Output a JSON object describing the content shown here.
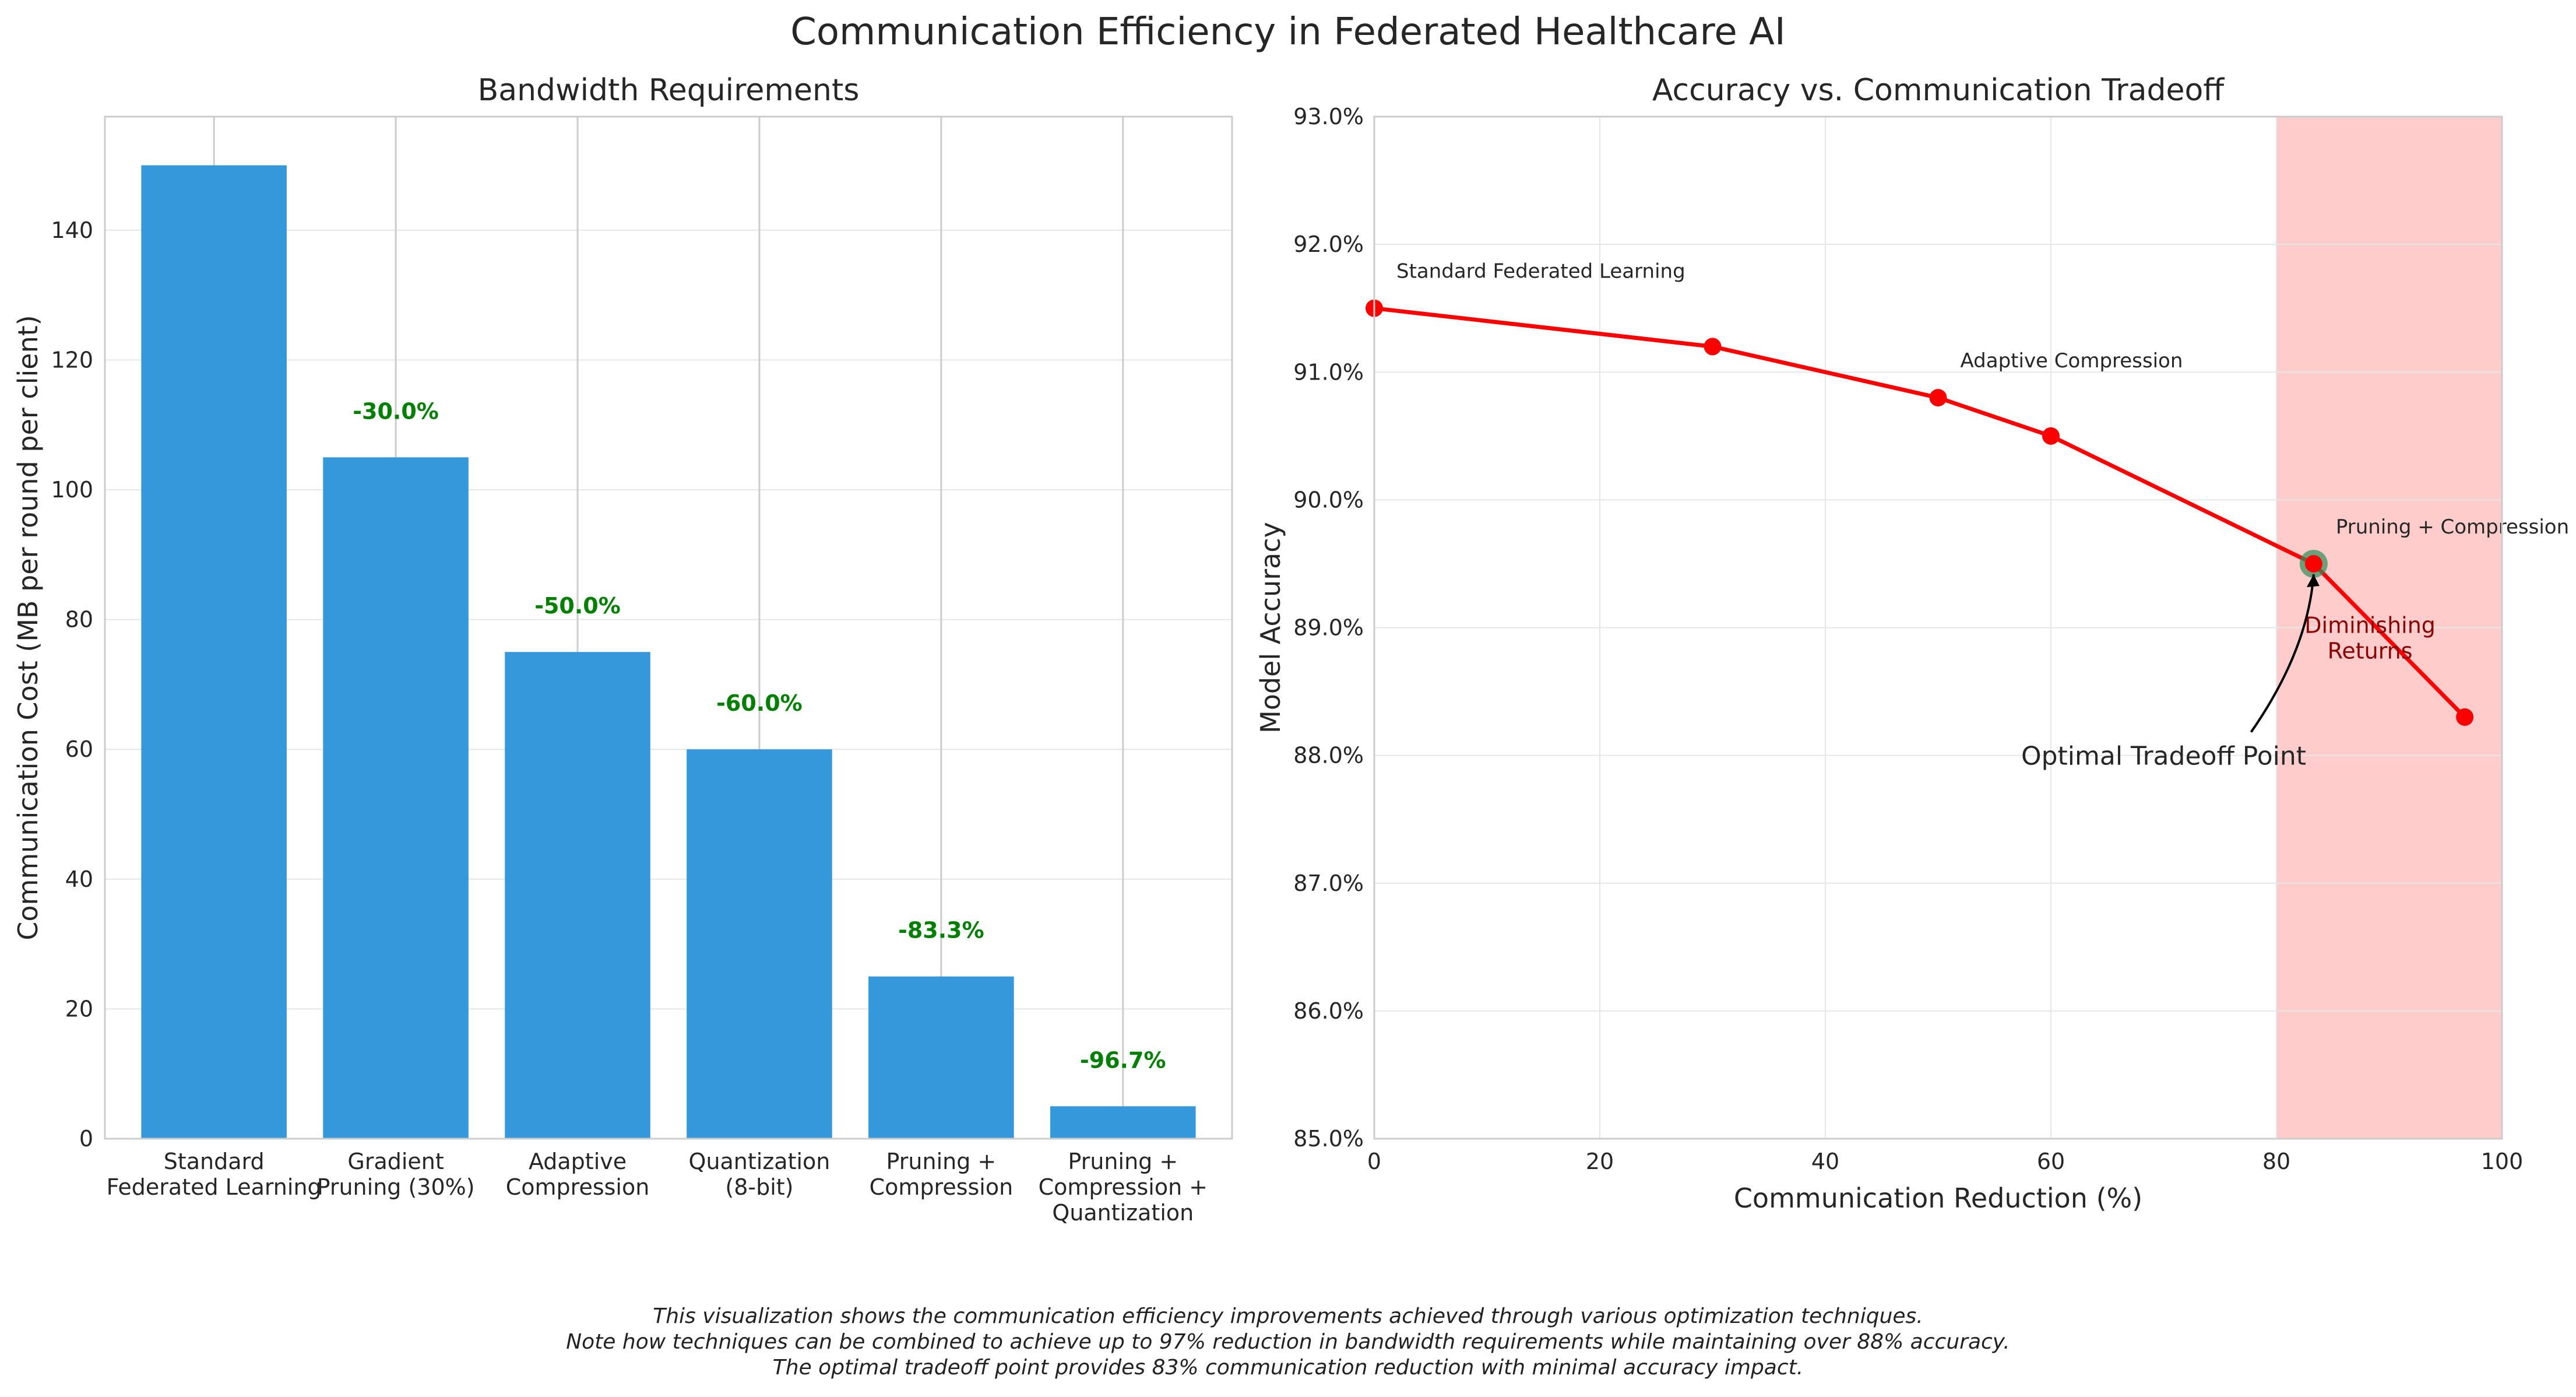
{
  "suptitle": "Communication Efficiency in Federated Healthcare AI",
  "colors": {
    "bar": "#3498db",
    "pct_label": "#008000",
    "line": "#ff0000",
    "highlight": "#2e8b57",
    "shade": "#ff9999",
    "shade_text": "#8b0000",
    "grid": "#e6e6e6",
    "axis": "#cccccc",
    "text": "#262626"
  },
  "chart_data": [
    {
      "type": "bar",
      "title": "Bandwidth Requirements",
      "xlabel": "",
      "ylabel": "Communication Cost (MB per round per client)",
      "ylim": [
        0,
        157.5
      ],
      "yticks": [
        0,
        20,
        40,
        60,
        80,
        100,
        120,
        140
      ],
      "categories": [
        [
          "Standard",
          "Federated Learning"
        ],
        [
          "Gradient",
          "Pruning (30%)"
        ],
        [
          "Adaptive",
          "Compression"
        ],
        [
          "Quantization",
          "(8-bit)"
        ],
        [
          "Pruning +",
          "Compression"
        ],
        [
          "Pruning +",
          "Compression +",
          "Quantization"
        ]
      ],
      "values": [
        150,
        105,
        75,
        60,
        25,
        5
      ],
      "bar_labels": [
        "",
        "-30.0%",
        "-50.0%",
        "-60.0%",
        "-83.3%",
        "-96.7%"
      ],
      "grid": true
    },
    {
      "type": "line",
      "title": "Accuracy vs. Communication Tradeoff",
      "xlabel": "Communication Reduction (%)",
      "ylabel": "Model Accuracy",
      "xlim": [
        0,
        100
      ],
      "ylim": [
        85.0,
        93.0
      ],
      "xticks": [
        0,
        20,
        40,
        60,
        80,
        100
      ],
      "yticks": [
        85.0,
        86.0,
        87.0,
        88.0,
        89.0,
        90.0,
        91.0,
        92.0,
        93.0
      ],
      "ytick_labels": [
        "85.0%",
        "86.0%",
        "87.0%",
        "88.0%",
        "89.0%",
        "90.0%",
        "91.0%",
        "92.0%",
        "93.0%"
      ],
      "x": [
        0,
        30,
        50,
        60,
        83.3,
        96.7
      ],
      "y": [
        91.5,
        91.2,
        90.8,
        90.5,
        89.5,
        88.3
      ],
      "point_labels": [
        {
          "index": 0,
          "text": "Standard Federated Learning"
        },
        {
          "index": 2,
          "text": "Adaptive Compression"
        },
        {
          "index": 4,
          "text": "Pruning + Compression"
        }
      ],
      "highlight_index": 4,
      "annotation": {
        "text": "Optimal Tradeoff Point",
        "x": 70,
        "y": 88.0
      },
      "shaded_region": {
        "x_from": 80,
        "x_to": 100,
        "label": [
          "Diminishing",
          "Returns"
        ]
      },
      "grid": true
    }
  ],
  "caption": [
    "This visualization shows the communication efficiency improvements achieved through various optimization techniques.",
    "Note how techniques can be combined to achieve up to 97% reduction in bandwidth requirements while maintaining over 88% accuracy.",
    "The optimal tradeoff point provides 83% communication reduction with minimal accuracy impact."
  ]
}
